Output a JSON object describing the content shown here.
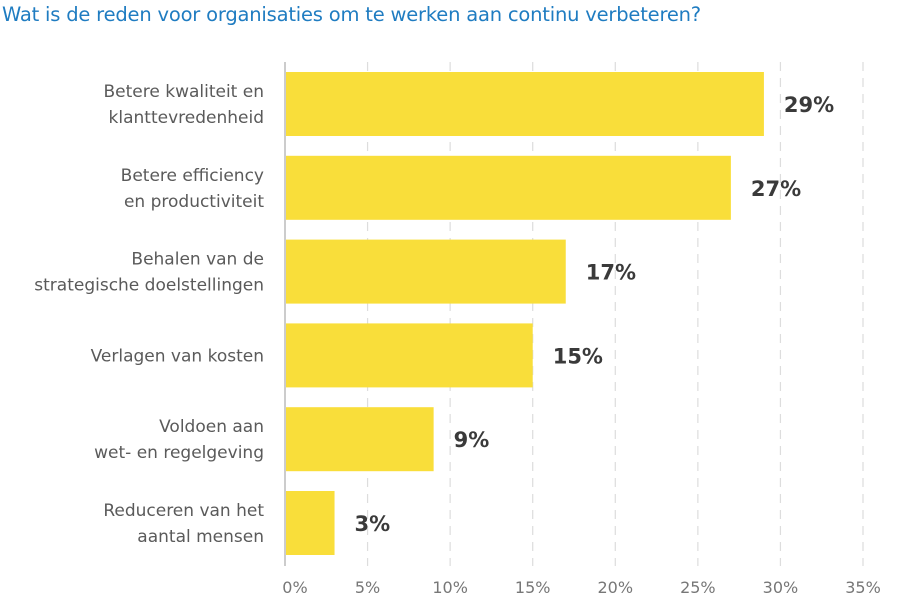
{
  "chart_data": {
    "type": "bar",
    "orientation": "horizontal",
    "title": "Wat is de reden voor organisaties om te werken aan continu verbeteren?",
    "categories": [
      [
        "Betere kwaliteit en",
        "klanttevredenheid"
      ],
      [
        "Betere efficiency",
        "en productiviteit"
      ],
      [
        "Behalen van de",
        "strategische doelstellingen"
      ],
      [
        "Verlagen van kosten"
      ],
      [
        "Voldoen aan",
        "wet- en regelgeving"
      ],
      [
        "Reduceren van het",
        "aantal mensen"
      ]
    ],
    "values": [
      29,
      27,
      17,
      15,
      9,
      3
    ],
    "data_labels": [
      "29%",
      "27%",
      "17%",
      "15%",
      "9%",
      "3%"
    ],
    "xlim": [
      0,
      35
    ],
    "xticks": [
      "0%",
      "5%",
      "10%",
      "15%",
      "20%",
      "25%",
      "30%",
      "35%"
    ],
    "grid": "vertical dashed",
    "colors": {
      "bar": "#f9de3a",
      "title": "#1f7cc1"
    }
  }
}
